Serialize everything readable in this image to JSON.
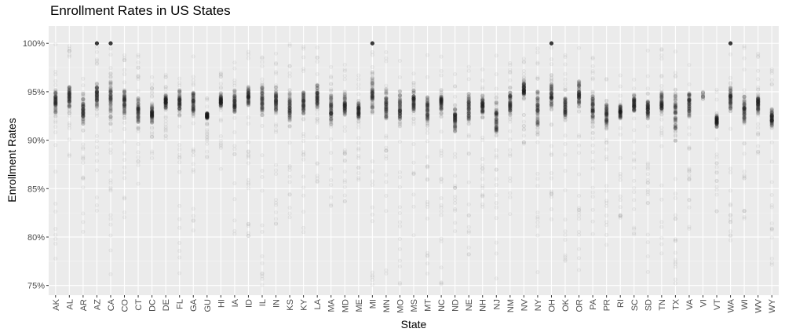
{
  "chart_data": {
    "type": "scatter",
    "title": "Enrollment Rates in US States",
    "xlabel": "State",
    "ylabel": "Enrollment Rates",
    "y_tick_labels": [
      "75%",
      "80%",
      "85%",
      "90%",
      "95%",
      "100%"
    ],
    "y_ticks": [
      75,
      80,
      85,
      90,
      95,
      100
    ],
    "ylim": [
      74,
      101.8
    ],
    "grid": true,
    "categories": [
      "AK",
      "AL",
      "AR",
      "AZ",
      "CA",
      "CO",
      "CT",
      "DC",
      "DE",
      "FL",
      "GA",
      "GU",
      "HI",
      "IA",
      "ID",
      "IL",
      "IN",
      "KS",
      "KY",
      "LA",
      "MA",
      "MD",
      "ME",
      "MI",
      "MN",
      "MO",
      "MS",
      "MT",
      "NC",
      "ND",
      "NE",
      "NH",
      "NJ",
      "NM",
      "NV",
      "NY",
      "OH",
      "OK",
      "OR",
      "PA",
      "PR",
      "RI",
      "SC",
      "SD",
      "TN",
      "TX",
      "VA",
      "VI",
      "VT",
      "WA",
      "WI",
      "WV",
      "WY"
    ],
    "series": [
      {
        "dense_range": [
          [
            92,
            96
          ],
          [
            93,
            96
          ],
          [
            91,
            95
          ],
          [
            93,
            96.5
          ],
          [
            91,
            97.5
          ],
          [
            92,
            96
          ],
          [
            91,
            95
          ],
          [
            91.5,
            94
          ],
          [
            93,
            95
          ],
          [
            92,
            96
          ],
          [
            92,
            95.5
          ],
          [
            92,
            93
          ],
          [
            93,
            95
          ],
          [
            92,
            95.5
          ],
          [
            93,
            96
          ],
          [
            92,
            96.5
          ],
          [
            92,
            96
          ],
          [
            91,
            95.5
          ],
          [
            92,
            96
          ],
          [
            93,
            96
          ],
          [
            91,
            95.5
          ],
          [
            92,
            95.5
          ],
          [
            91.5,
            94.5
          ],
          [
            92,
            97.5
          ],
          [
            91,
            96
          ],
          [
            91,
            95.5
          ],
          [
            92.5,
            95.5
          ],
          [
            91,
            95.5
          ],
          [
            92,
            95.5
          ],
          [
            90.5,
            94
          ],
          [
            91,
            95.5
          ],
          [
            92,
            95
          ],
          [
            90,
            95
          ],
          [
            92,
            96
          ],
          [
            94,
            96.5
          ],
          [
            90,
            96.5
          ],
          [
            92,
            97
          ],
          [
            91,
            95.5
          ],
          [
            93,
            96.5
          ],
          [
            91,
            95.5
          ],
          [
            90.5,
            94.5
          ],
          [
            92,
            94
          ],
          [
            92.5,
            95
          ],
          [
            91.5,
            95
          ],
          [
            92,
            95.5
          ],
          [
            89.5,
            96
          ],
          [
            92,
            95.5
          ],
          [
            94.5,
            94.5
          ],
          [
            91,
            93
          ],
          [
            92,
            96.5
          ],
          [
            91,
            95.5
          ],
          [
            92.5,
            95
          ],
          [
            91,
            93.5
          ]
        ],
        "spread_range": [
          [
            75,
            100
          ],
          [
            88,
            100
          ],
          [
            80,
            97
          ],
          [
            80,
            100
          ],
          [
            75,
            100
          ],
          [
            82,
            100
          ],
          [
            85,
            100
          ],
          [
            88,
            97
          ],
          [
            90,
            97
          ],
          [
            75,
            100
          ],
          [
            80,
            99
          ],
          [
            88,
            95
          ],
          [
            87,
            97
          ],
          [
            80,
            99
          ],
          [
            80,
            100
          ],
          [
            75,
            100
          ],
          [
            80,
            99
          ],
          [
            82,
            100
          ],
          [
            80,
            100
          ],
          [
            84,
            100
          ],
          [
            83,
            98
          ],
          [
            83,
            98
          ],
          [
            85,
            97
          ],
          [
            75,
            100
          ],
          [
            75,
            100
          ],
          [
            75,
            100
          ],
          [
            80,
            99
          ],
          [
            75,
            100
          ],
          [
            75,
            100
          ],
          [
            79,
            97
          ],
          [
            78,
            99
          ],
          [
            82,
            98
          ],
          [
            75,
            99
          ],
          [
            82,
            99
          ],
          [
            88,
            100
          ],
          [
            75,
            100
          ],
          [
            80,
            100
          ],
          [
            77,
            99
          ],
          [
            75,
            100
          ],
          [
            80,
            99
          ],
          [
            79,
            98
          ],
          [
            82,
            97
          ],
          [
            80,
            98
          ],
          [
            76,
            100
          ],
          [
            78,
            100
          ],
          [
            75,
            100
          ],
          [
            80,
            98
          ],
          [
            94,
            95
          ],
          [
            82,
            96
          ],
          [
            78,
            100
          ],
          [
            80,
            100
          ],
          [
            88,
            99
          ],
          [
            77,
            98
          ]
        ],
        "full_100_states": [
          "AZ",
          "CA",
          "MI",
          "OH",
          "WA"
        ]
      }
    ]
  }
}
